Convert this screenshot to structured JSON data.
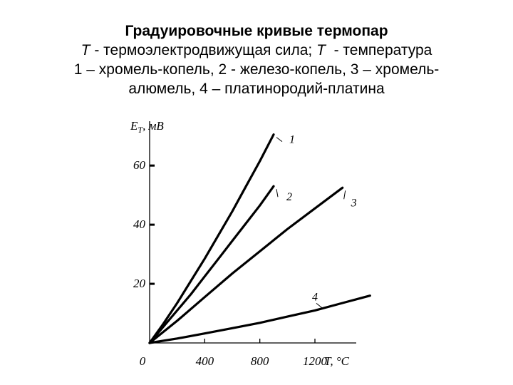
{
  "caption": {
    "title": "Градуировочные кривые термопар",
    "line2_sym1": "T",
    "line2_text1": " - термоэлектродвижущая сила; ",
    "line2_sym2": "T",
    "line2_text2": "  - температура",
    "line3": "1 – хромель-копель, 2 - железо-копель, 3 – хромель-",
    "line4": "алюмель, 4 – платинородий-платина"
  },
  "chart_data": {
    "type": "line",
    "title": "",
    "xlabel": "T, °C",
    "ylabel": "E",
    "ylabel_sub": "T",
    "ylabel_unit": ", мВ",
    "xlim": [
      0,
      1500
    ],
    "ylim": [
      0,
      75
    ],
    "x_ticks": [
      {
        "value": 0,
        "label": "0"
      },
      {
        "value": 400,
        "label": "400"
      },
      {
        "value": 800,
        "label": "800"
      },
      {
        "value": 1200,
        "label": "1200"
      }
    ],
    "y_ticks": [
      {
        "value": 20,
        "label": "20"
      },
      {
        "value": 40,
        "label": "40"
      },
      {
        "value": 60,
        "label": "60"
      }
    ],
    "grid": false,
    "legend": "none",
    "series": [
      {
        "name": "1",
        "x": [
          0,
          100,
          200,
          300,
          400,
          500,
          600,
          700,
          800,
          900
        ],
        "y": [
          0,
          6.5,
          13.5,
          21,
          28.5,
          36.5,
          44.5,
          53,
          61.5,
          70.5
        ]
      },
      {
        "name": "2",
        "x": [
          0,
          100,
          200,
          300,
          400,
          500,
          600,
          700,
          800,
          900
        ],
        "y": [
          0,
          5.5,
          11,
          16.5,
          22.5,
          28.5,
          34.5,
          40.5,
          46.5,
          53
        ]
      },
      {
        "name": "3",
        "x": [
          0,
          200,
          400,
          600,
          800,
          1000,
          1200,
          1400
        ],
        "y": [
          0,
          7.5,
          15.5,
          23.5,
          31,
          38.5,
          45.5,
          52.5
        ]
      },
      {
        "name": "4",
        "x": [
          0,
          200,
          400,
          600,
          800,
          1000,
          1200,
          1400,
          1600
        ],
        "y": [
          0,
          1.5,
          3.2,
          5,
          6.8,
          8.9,
          11,
          13.5,
          16
        ]
      }
    ]
  }
}
